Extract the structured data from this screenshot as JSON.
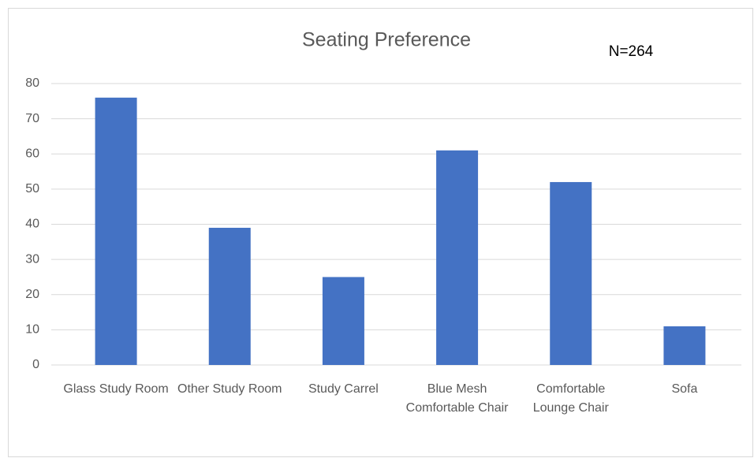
{
  "chart_data": {
    "type": "bar",
    "title": "Seating Preference",
    "annotation": "N=264",
    "categories": [
      "Glass Study Room",
      "Other Study Room",
      "Study Carrel",
      "Blue Mesh Comfortable Chair",
      "Comfortable Lounge Chair",
      "Sofa"
    ],
    "values": [
      76,
      39,
      25,
      61,
      52,
      11
    ],
    "color": "#4472c4",
    "ylim": [
      0,
      80
    ],
    "yticks": [
      0,
      10,
      20,
      30,
      40,
      50,
      60,
      70,
      80
    ],
    "grid": true
  }
}
